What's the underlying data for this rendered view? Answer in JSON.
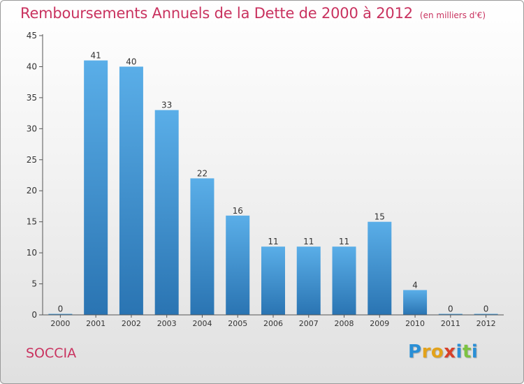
{
  "header": {
    "title": "Remboursements Annuels de la Dette de 2000 à 2012",
    "unit": "(en milliers d'€)"
  },
  "footer": {
    "city": "SOCCIA",
    "logo_letters": [
      "P",
      "r",
      "o",
      "x",
      "i",
      "t",
      "i"
    ]
  },
  "colors": {
    "accent": "#c9325f",
    "bar_top": "#5aaee8",
    "bar_bottom": "#2a74b2"
  },
  "chart_data": {
    "type": "bar",
    "categories": [
      "2000",
      "2001",
      "2002",
      "2003",
      "2004",
      "2005",
      "2006",
      "2007",
      "2008",
      "2009",
      "2010",
      "2011",
      "2012"
    ],
    "values": [
      0,
      41,
      40,
      33,
      22,
      16,
      11,
      11,
      11,
      15,
      4,
      0,
      0
    ],
    "data_labels": [
      "0",
      "41",
      "40",
      "33",
      "22",
      "16",
      "11",
      "11",
      "11",
      "15",
      "4",
      "0",
      "0"
    ],
    "ylim": [
      0,
      45
    ],
    "yticks": [
      0,
      5,
      10,
      15,
      20,
      25,
      30,
      35,
      40,
      45
    ],
    "grid": false,
    "legend": "none"
  }
}
